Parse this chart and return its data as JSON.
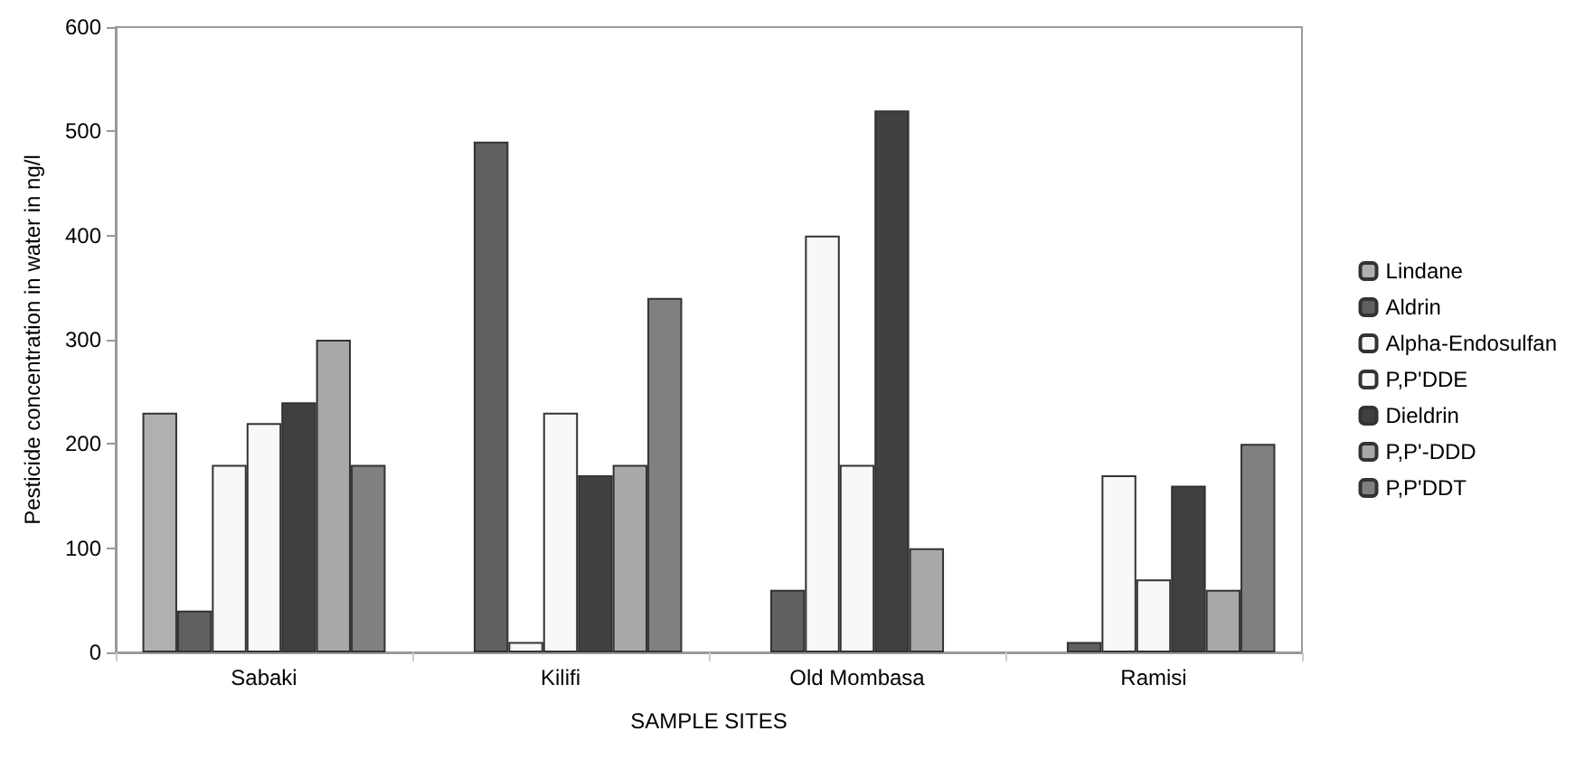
{
  "chart_data": {
    "type": "bar",
    "xlabel": "SAMPLE SITES",
    "ylabel": "Pesticide concentration in water in ng/l",
    "categories": [
      "Sabaki",
      "Kilifi",
      "Old Mombasa",
      "Ramisi"
    ],
    "series": [
      {
        "name": "Lindane",
        "color": "#b0b0b0",
        "values": [
          230,
          null,
          null,
          null
        ]
      },
      {
        "name": "Aldrin",
        "color": "#606060",
        "values": [
          40,
          490,
          60,
          10
        ]
      },
      {
        "name": "Alpha-Endosulfan",
        "color": "#f8f8f8",
        "values": [
          180,
          10,
          400,
          170
        ]
      },
      {
        "name": "P,P'DDE",
        "color": "#f8f8f8",
        "values": [
          220,
          230,
          180,
          70
        ]
      },
      {
        "name": "Dieldrin",
        "color": "#404040",
        "values": [
          240,
          170,
          520,
          160
        ]
      },
      {
        "name": "P,P'-DDD",
        "color": "#a8a8a8",
        "values": [
          300,
          180,
          100,
          60
        ]
      },
      {
        "name": "P,P'DDT",
        "color": "#808080",
        "values": [
          180,
          340,
          null,
          200
        ]
      }
    ],
    "ylim": [
      0,
      600
    ],
    "yticks": [
      0,
      100,
      200,
      300,
      400,
      500,
      600
    ],
    "grid": false,
    "legend": "right"
  }
}
